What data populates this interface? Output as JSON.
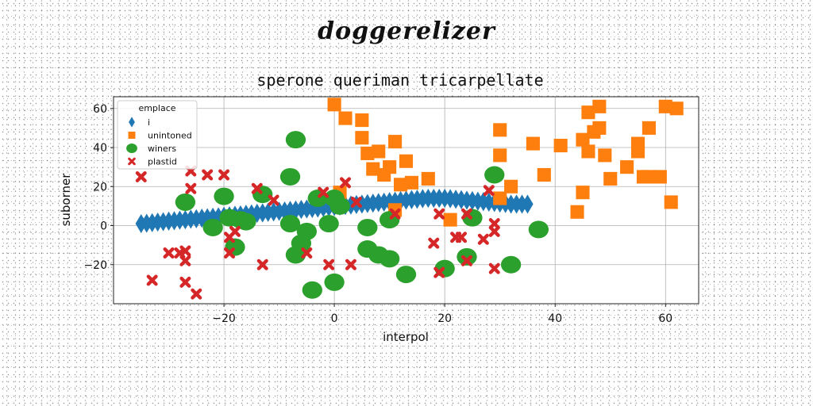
{
  "suptitle": "doggerelizer",
  "chart_data": {
    "type": "scatter",
    "title": "sperone queriman tricarpellate",
    "xlabel": "interpol",
    "ylabel": "suborner",
    "xlim": [
      -40,
      66
    ],
    "ylim": [
      -40,
      66
    ],
    "xticks": [
      -20,
      0,
      20,
      40,
      60
    ],
    "yticks": [
      -20,
      0,
      20,
      40,
      60
    ],
    "grid": true,
    "legend": {
      "title": "emplace",
      "position": "upper-left"
    },
    "series": [
      {
        "name": "i",
        "marker": "diamond",
        "color": "#1f77b4",
        "points": [
          [
            -35,
            1
          ],
          [
            -34,
            1.2
          ],
          [
            -33,
            1.5
          ],
          [
            -32,
            1.8
          ],
          [
            -31,
            2
          ],
          [
            -30,
            2.3
          ],
          [
            -29,
            2.5
          ],
          [
            -28,
            2.8
          ],
          [
            -27,
            3
          ],
          [
            -26,
            3.3
          ],
          [
            -25,
            3.5
          ],
          [
            -24,
            3.8
          ],
          [
            -23,
            4
          ],
          [
            -22,
            4.3
          ],
          [
            -21,
            4.5
          ],
          [
            -20,
            4.8
          ],
          [
            -19,
            5
          ],
          [
            -18,
            5.3
          ],
          [
            -17,
            5.5
          ],
          [
            -16,
            5.8
          ],
          [
            -15,
            6
          ],
          [
            -14,
            6.3
          ],
          [
            -13,
            6.5
          ],
          [
            -12,
            6.8
          ],
          [
            -11,
            7
          ],
          [
            -10,
            7.3
          ],
          [
            -9,
            7.5
          ],
          [
            -8,
            7.8
          ],
          [
            -7,
            8
          ],
          [
            -6,
            8.3
          ],
          [
            -5,
            8.5
          ],
          [
            -4,
            8.8
          ],
          [
            -3,
            9
          ],
          [
            -2,
            9.3
          ],
          [
            -1,
            9.5
          ],
          [
            0,
            9.8
          ],
          [
            1,
            10
          ],
          [
            2,
            10.3
          ],
          [
            3,
            10.5
          ],
          [
            4,
            10.8
          ],
          [
            5,
            11
          ],
          [
            6,
            11.3
          ],
          [
            7,
            11.5
          ],
          [
            8,
            11.8
          ],
          [
            9,
            12
          ],
          [
            10,
            12.3
          ],
          [
            11,
            12.5
          ],
          [
            12,
            12.8
          ],
          [
            13,
            13
          ],
          [
            14,
            13.3
          ],
          [
            15,
            13.5
          ],
          [
            16,
            13.8
          ],
          [
            17,
            14
          ],
          [
            18,
            14
          ],
          [
            19,
            14
          ],
          [
            20,
            14
          ],
          [
            21,
            13.8
          ],
          [
            22,
            13.5
          ],
          [
            23,
            13.3
          ],
          [
            24,
            13
          ],
          [
            25,
            12.8
          ],
          [
            26,
            12.5
          ],
          [
            27,
            12.3
          ],
          [
            28,
            12
          ],
          [
            29,
            11.8
          ],
          [
            30,
            11.5
          ],
          [
            31,
            11.3
          ],
          [
            32,
            11
          ],
          [
            33,
            11
          ],
          [
            34,
            11
          ],
          [
            35,
            11
          ]
        ]
      },
      {
        "name": "unintoned",
        "marker": "square",
        "color": "#ff7f0e",
        "points": [
          [
            0,
            62
          ],
          [
            2,
            55
          ],
          [
            5,
            54
          ],
          [
            5,
            45
          ],
          [
            6,
            37
          ],
          [
            7,
            29
          ],
          [
            8,
            38
          ],
          [
            9,
            26
          ],
          [
            10,
            30
          ],
          [
            11,
            43
          ],
          [
            11,
            8
          ],
          [
            12,
            21
          ],
          [
            13,
            33
          ],
          [
            14,
            22
          ],
          [
            17,
            24
          ],
          [
            21,
            3
          ],
          [
            30,
            49
          ],
          [
            30,
            36
          ],
          [
            30,
            14
          ],
          [
            32,
            20
          ],
          [
            36,
            42
          ],
          [
            38,
            26
          ],
          [
            41,
            41
          ],
          [
            44,
            7
          ],
          [
            45,
            17
          ],
          [
            45,
            44
          ],
          [
            46,
            58
          ],
          [
            46,
            38
          ],
          [
            47,
            48
          ],
          [
            48,
            50
          ],
          [
            48,
            61
          ],
          [
            49,
            36
          ],
          [
            50,
            24
          ],
          [
            53,
            30
          ],
          [
            55,
            42
          ],
          [
            55,
            38
          ],
          [
            56,
            25
          ],
          [
            57,
            50
          ],
          [
            57,
            25
          ],
          [
            59,
            25
          ],
          [
            60,
            61
          ],
          [
            61,
            12
          ],
          [
            62,
            60
          ],
          [
            1,
            17
          ]
        ]
      },
      {
        "name": "winers",
        "marker": "circle",
        "color": "#2ca02c",
        "points": [
          [
            -27,
            12
          ],
          [
            -22,
            -1
          ],
          [
            -20,
            15
          ],
          [
            -19,
            4
          ],
          [
            -18,
            -11
          ],
          [
            -17,
            3
          ],
          [
            -16,
            2
          ],
          [
            -13,
            16
          ],
          [
            -8,
            25
          ],
          [
            -8,
            1
          ],
          [
            -7,
            -15
          ],
          [
            -7,
            44
          ],
          [
            -6,
            -9
          ],
          [
            -5,
            -3
          ],
          [
            -4,
            -33
          ],
          [
            -3,
            14
          ],
          [
            -1,
            1
          ],
          [
            0,
            -29
          ],
          [
            0,
            14
          ],
          [
            1,
            10
          ],
          [
            6,
            -1
          ],
          [
            6,
            -12
          ],
          [
            8,
            -15
          ],
          [
            10,
            -17
          ],
          [
            10,
            3
          ],
          [
            13,
            -25
          ],
          [
            20,
            -22
          ],
          [
            24,
            -16
          ],
          [
            25,
            4
          ],
          [
            29,
            26
          ],
          [
            32,
            -20
          ],
          [
            37,
            -2
          ]
        ]
      },
      {
        "name": "plastid",
        "marker": "x",
        "color": "#d62728",
        "points": [
          [
            -35,
            25
          ],
          [
            -33,
            -28
          ],
          [
            -30,
            -14
          ],
          [
            -28,
            -14
          ],
          [
            -27,
            -13
          ],
          [
            -27,
            -18
          ],
          [
            -27,
            -29
          ],
          [
            -26,
            28
          ],
          [
            -26,
            19
          ],
          [
            -25,
            -35
          ],
          [
            -23,
            26
          ],
          [
            -20,
            26
          ],
          [
            -19,
            -6
          ],
          [
            -19,
            -14
          ],
          [
            -18,
            -3
          ],
          [
            -14,
            19
          ],
          [
            -13,
            -20
          ],
          [
            -11,
            13
          ],
          [
            -5,
            -14
          ],
          [
            -2,
            17
          ],
          [
            -1,
            -20
          ],
          [
            2,
            22
          ],
          [
            3,
            -20
          ],
          [
            4,
            12
          ],
          [
            11,
            6
          ],
          [
            18,
            -9
          ],
          [
            19,
            6
          ],
          [
            19,
            -24
          ],
          [
            22,
            -6
          ],
          [
            23,
            -6
          ],
          [
            24,
            6
          ],
          [
            24,
            -18
          ],
          [
            27,
            -7
          ],
          [
            28,
            18
          ],
          [
            29,
            -3
          ],
          [
            29,
            1
          ],
          [
            29,
            -22
          ]
        ]
      }
    ]
  }
}
